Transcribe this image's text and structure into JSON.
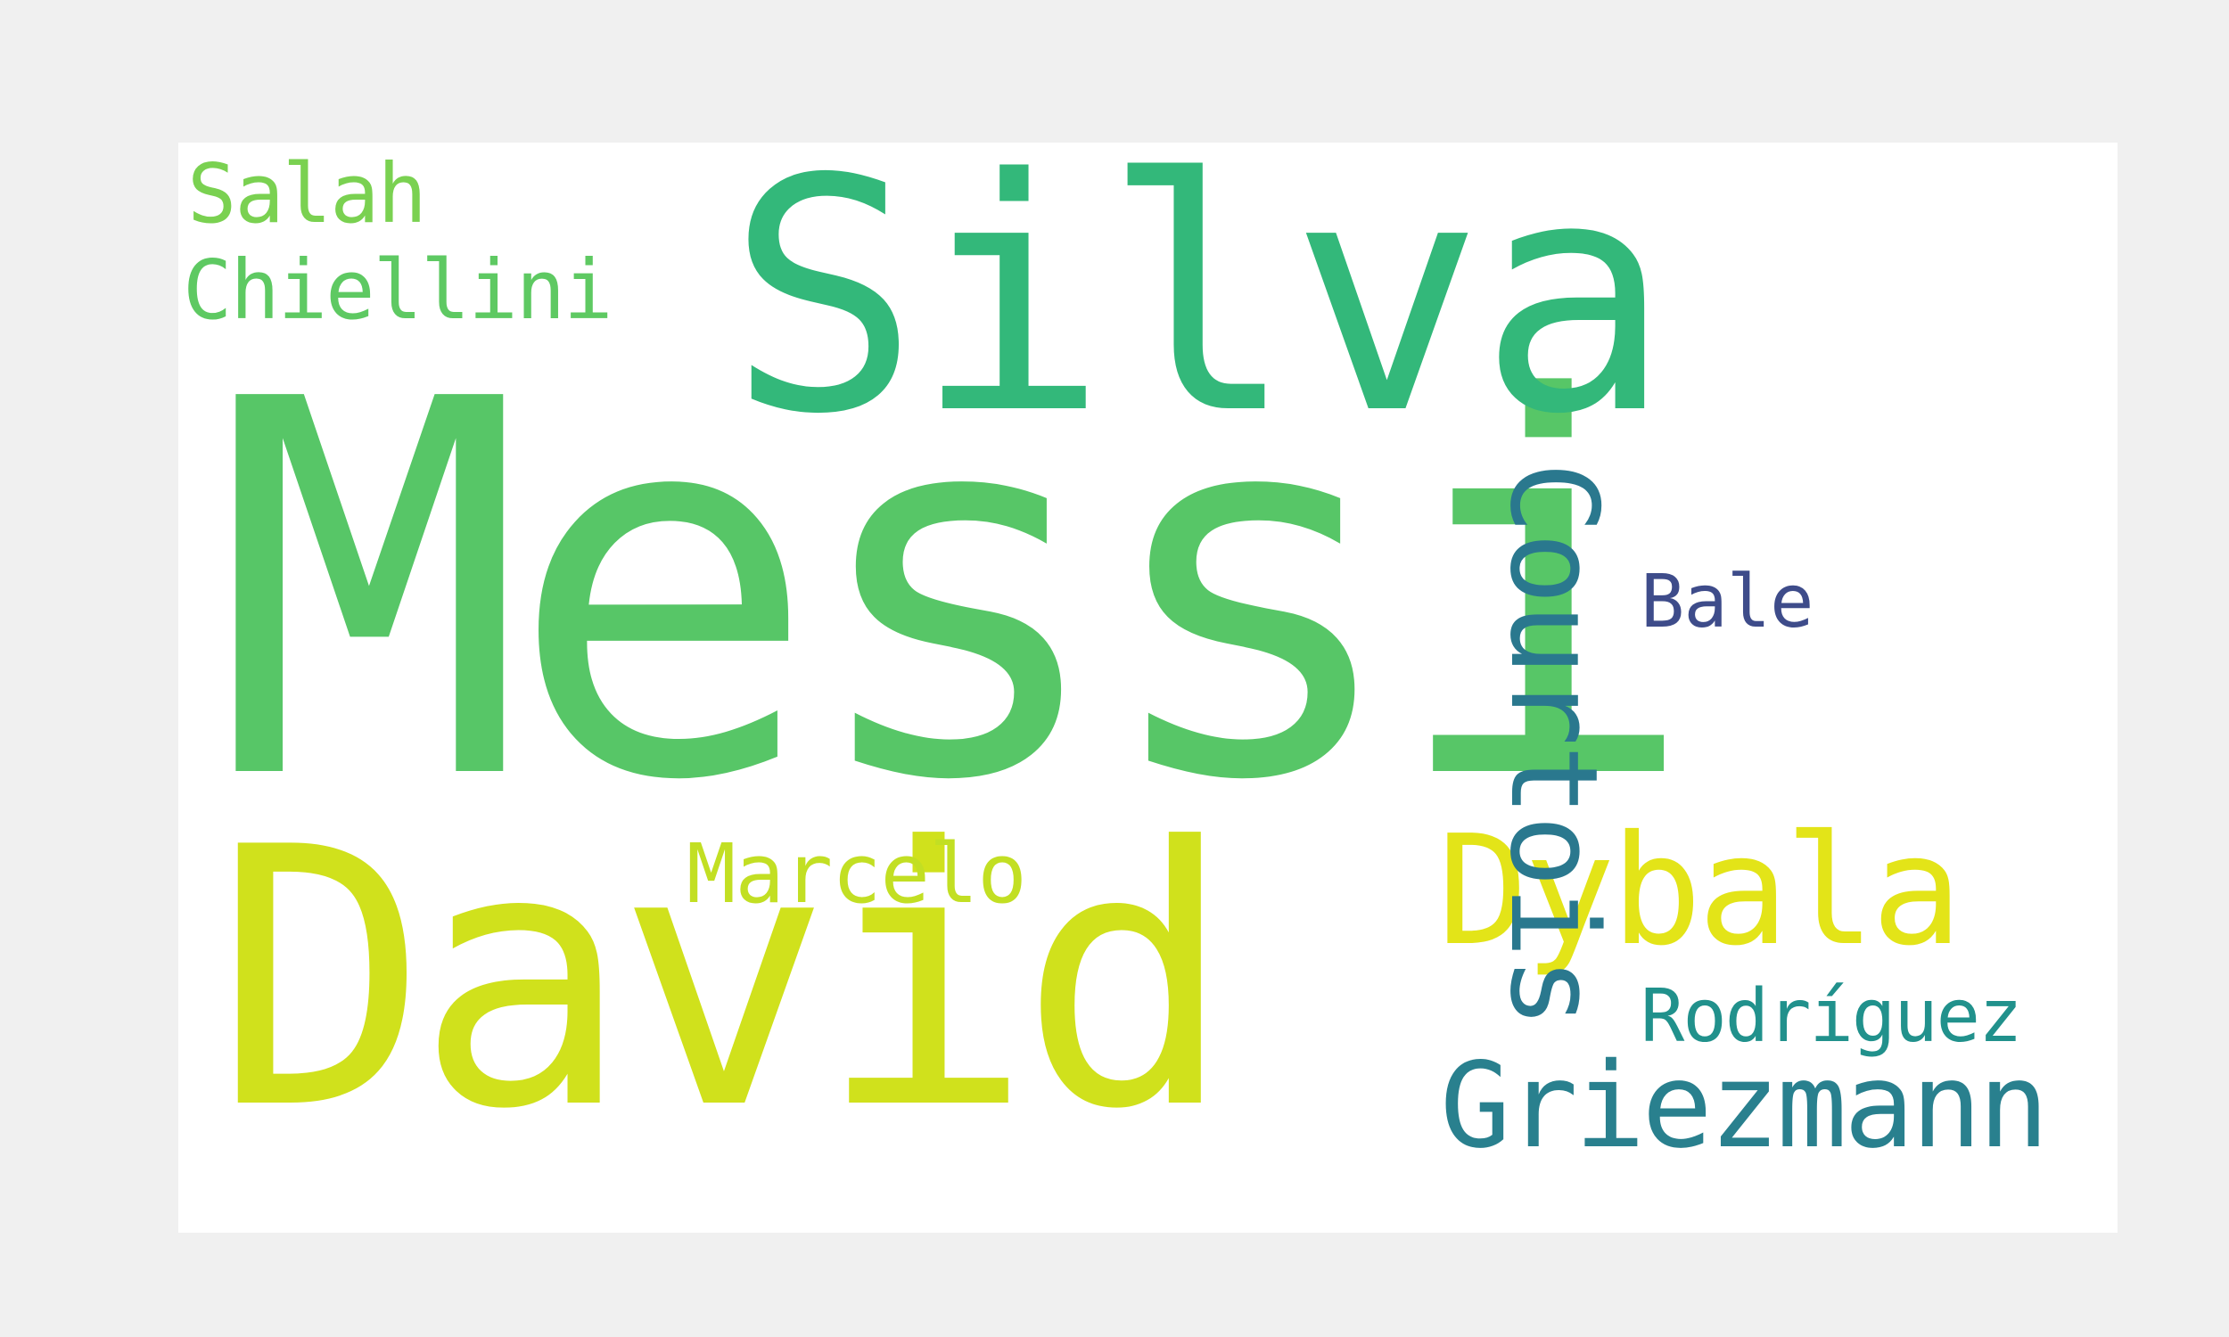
{
  "words": [
    {
      "text": "Messi",
      "color": "#57c667"
    },
    {
      "text": "David",
      "color": "#d0e11c"
    },
    {
      "text": "Silva",
      "color": "#33b87a"
    },
    {
      "text": "Dybala",
      "color": "#e3e418"
    },
    {
      "text": "Griezmann",
      "color": "#29808e"
    },
    {
      "text": "Courtois",
      "color": "#2a788e"
    },
    {
      "text": "Chiellini",
      "color": "#5ec962"
    },
    {
      "text": "Salah",
      "color": "#7ad151"
    },
    {
      "text": "Marcelo",
      "color": "#c2df23"
    },
    {
      "text": "Rodríguez",
      "color": "#21918c"
    },
    {
      "text": "Bale",
      "color": "#3e4c8a"
    }
  ]
}
